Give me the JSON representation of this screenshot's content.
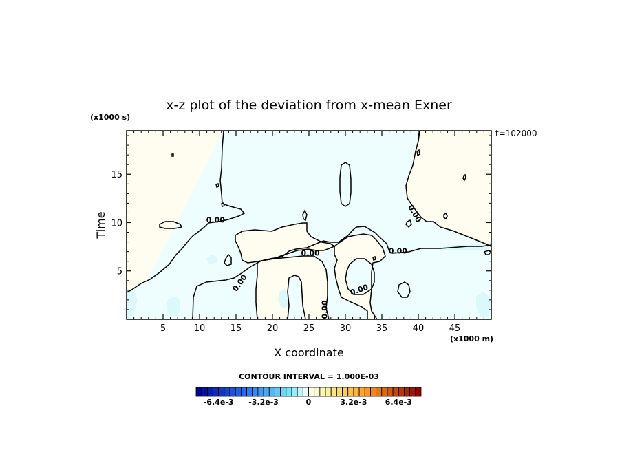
{
  "chart_data": {
    "type": "contour",
    "title": "x-z plot of the deviation from x-mean Exner",
    "xlabel": "X coordinate",
    "ylabel": "Time",
    "x_unit_label": "(x1000 m)",
    "y_unit_label": "(x1000 s)",
    "time_label": "t=102000",
    "xlim": [
      0,
      50
    ],
    "ylim": [
      0,
      19.5
    ],
    "x_ticks": [
      5,
      10,
      15,
      20,
      25,
      30,
      35,
      40,
      45
    ],
    "y_ticks": [
      5,
      10,
      15
    ],
    "contour_interval_label": "CONTOUR INTERVAL = 1.000E-03",
    "contour_labels": [
      {
        "text": "0.00",
        "x": 12.2,
        "y": 10.0
      },
      {
        "text": "0.00",
        "x": 15.8,
        "y": 3.6
      },
      {
        "text": "0.00",
        "x": 25.2,
        "y": 6.6
      },
      {
        "text": "0.00",
        "x": 27.5,
        "y": 1.0
      },
      {
        "text": "0.00",
        "x": 32.0,
        "y": 2.8
      },
      {
        "text": "0.00",
        "x": 37.2,
        "y": 6.8
      },
      {
        "text": "0.00",
        "x": 39.2,
        "y": 10.8
      }
    ],
    "colorbar": {
      "min": -0.008,
      "max": 0.008,
      "interval": 0.0004,
      "tick_labels": [
        {
          "text": "-6.4e-3",
          "value": -0.0064
        },
        {
          "text": "-3.2e-3",
          "value": -0.0032
        },
        {
          "text": "0",
          "value": 0
        },
        {
          "text": "3.2e-3",
          "value": 0.0032
        },
        {
          "text": "6.4e-3",
          "value": 0.0064
        }
      ]
    },
    "colors": {
      "positive_fill": "#fffdf0",
      "negative_fill": "#eefefe",
      "weak_negative_fill": "#dcf8fa",
      "contour": "#000000"
    }
  }
}
